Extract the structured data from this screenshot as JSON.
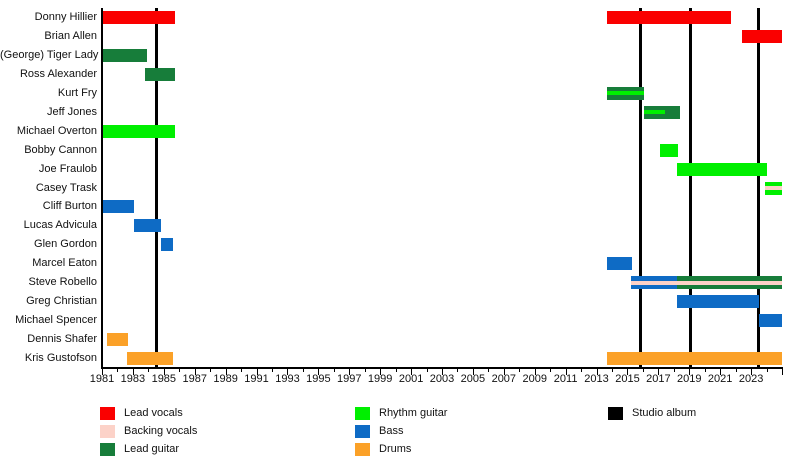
{
  "chart_data": {
    "type": "gantt-timeline",
    "description": "Band members timeline",
    "x_axis": {
      "start": 1981,
      "end": 2025,
      "tick_interval": 1,
      "label_interval": 2,
      "labels": [
        "1981",
        "1983",
        "1985",
        "1987",
        "1989",
        "1991",
        "1993",
        "1995",
        "1997",
        "1999",
        "2001",
        "2003",
        "2005",
        "2007",
        "2009",
        "2011",
        "2013",
        "2015",
        "2017",
        "2019",
        "2021",
        "2023"
      ]
    },
    "colors": {
      "Lead vocals": "#fa0000",
      "Backing vocals": "#fcd2c8",
      "Lead guitar": "#177d3a",
      "Rhythm guitar": "#00ef00",
      "Bass": "#0e6bc5",
      "Drums": "#fba128",
      "Studio album": "#000000"
    },
    "legend_columns": [
      [
        "Lead vocals",
        "Backing vocals",
        "Lead guitar"
      ],
      [
        "Rhythm guitar",
        "Bass",
        "Drums"
      ],
      [
        "Studio album"
      ]
    ],
    "albums": [
      1984.5,
      2015.85,
      2019.1,
      2023.45
    ],
    "members": [
      {
        "name": "Donny Hillier",
        "segments": [
          {
            "role": "Lead vocals",
            "start": 1981.0,
            "end": 1985.7
          },
          {
            "role": "Lead vocals",
            "start": 2013.7,
            "end": 2021.7
          }
        ]
      },
      {
        "name": "Brian Allen",
        "segments": [
          {
            "role": "Lead vocals",
            "start": 2022.4,
            "end": 2025.0
          }
        ]
      },
      {
        "name": "(George) Tiger Lady",
        "segments": [
          {
            "role": "Lead guitar",
            "start": 1981.0,
            "end": 1983.9
          }
        ]
      },
      {
        "name": "Ross Alexander",
        "segments": [
          {
            "role": "Lead guitar",
            "start": 1983.8,
            "end": 1985.7
          }
        ]
      },
      {
        "name": "Kurt Fry",
        "segments": [
          {
            "role": "Lead guitar",
            "start": 2013.7,
            "end": 2016.1,
            "stripe": "Rhythm guitar"
          }
        ]
      },
      {
        "name": "Jeff Jones",
        "segments": [
          {
            "role": "Lead guitar",
            "start": 2016.1,
            "end": 2018.4,
            "stripe": "Rhythm guitar",
            "stripe_end": 2017.4
          }
        ]
      },
      {
        "name": "Michael Overton",
        "segments": [
          {
            "role": "Rhythm guitar",
            "start": 1981.0,
            "end": 1985.7
          }
        ]
      },
      {
        "name": "Bobby Cannon",
        "segments": [
          {
            "role": "Rhythm guitar",
            "start": 2017.1,
            "end": 2018.3
          }
        ]
      },
      {
        "name": "Joe Fraulob",
        "segments": [
          {
            "role": "Rhythm guitar",
            "start": 2018.2,
            "end": 2024.0
          }
        ]
      },
      {
        "name": "Casey Trask",
        "segments": [
          {
            "role": "Rhythm guitar",
            "start": 2023.9,
            "end": 2025.0,
            "stripe": "Backing vocals"
          }
        ]
      },
      {
        "name": "Cliff Burton",
        "segments": [
          {
            "role": "Bass",
            "start": 1981.0,
            "end": 1983.1
          }
        ]
      },
      {
        "name": "Lucas Advicula",
        "segments": [
          {
            "role": "Bass",
            "start": 1983.1,
            "end": 1984.8
          }
        ]
      },
      {
        "name": "Glen Gordon",
        "segments": [
          {
            "role": "Bass",
            "start": 1984.8,
            "end": 1985.6
          }
        ]
      },
      {
        "name": "Marcel Eaton",
        "segments": [
          {
            "role": "Bass",
            "start": 2013.7,
            "end": 2015.3
          }
        ]
      },
      {
        "name": "Steve Robello",
        "segments": [
          {
            "role": "Bass",
            "start": 2015.2,
            "end": 2018.2,
            "stripe": "Backing vocals"
          },
          {
            "role": "Lead guitar",
            "start": 2018.2,
            "end": 2025.0,
            "stripe": "Backing vocals"
          }
        ]
      },
      {
        "name": "Greg Christian",
        "segments": [
          {
            "role": "Bass",
            "start": 2018.2,
            "end": 2023.5
          }
        ]
      },
      {
        "name": "Michael Spencer",
        "segments": [
          {
            "role": "Bass",
            "start": 2023.5,
            "end": 2025.0
          }
        ]
      },
      {
        "name": "Dennis Shafer",
        "segments": [
          {
            "role": "Drums",
            "start": 1981.3,
            "end": 1982.7
          }
        ]
      },
      {
        "name": "Kris Gustofson",
        "segments": [
          {
            "role": "Drums",
            "start": 1982.6,
            "end": 1985.6
          },
          {
            "role": "Drums",
            "start": 2013.7,
            "end": 2025.0
          }
        ]
      }
    ]
  }
}
